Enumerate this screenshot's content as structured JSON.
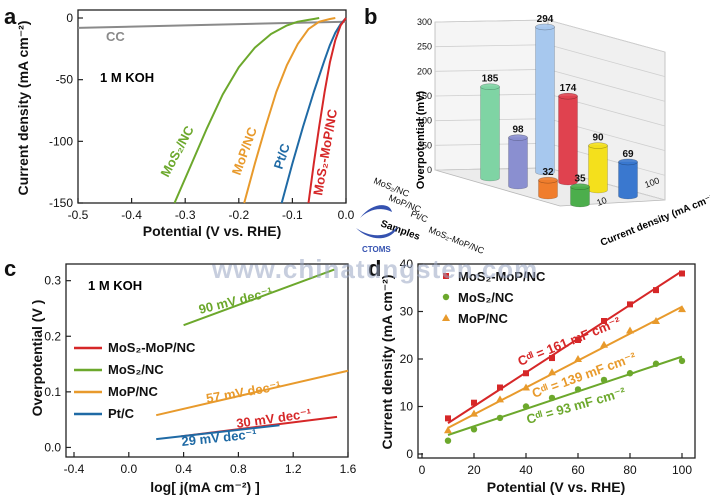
{
  "figure": {
    "watermark_text": "www.chinatungsten.com",
    "logo_text": "CTOMS"
  },
  "colors": {
    "red": "#d62728",
    "green": "#6ca82c",
    "orange": "#e89a2c",
    "blue": "#1f6aa5",
    "grey": "#8a8a8a"
  },
  "chart_data": [
    {
      "panel": "a",
      "type": "line",
      "xlabel": "Potential (V vs. RHE)",
      "ylabel": "Current density (mA cm⁻²)",
      "xlim": [
        -0.5,
        0.0
      ],
      "ylim": [
        -150,
        0
      ],
      "xticks": [
        -0.5,
        -0.4,
        -0.3,
        -0.2,
        -0.1,
        0.0
      ],
      "xtick_labels": [
        "-0.5",
        "-0.4",
        "-0.3",
        "-0.2",
        "-0.1",
        "0.0"
      ],
      "yticks": [
        0,
        -50,
        -100,
        -150
      ],
      "ytick_labels": [
        "0",
        "-50",
        "-100",
        "-150"
      ],
      "annotation": "1 M KOH",
      "series": [
        {
          "name": "CC",
          "label": "CC",
          "color": "#8a8a8a",
          "x": [
            -0.5,
            -0.3,
            -0.1,
            0.0
          ],
          "y": [
            -8,
            -6,
            -4,
            -3
          ]
        },
        {
          "name": "MoS2/NC",
          "label": "MoS₂/NC",
          "color": "#6ca82c",
          "x": [
            -0.32,
            -0.29,
            -0.26,
            -0.23,
            -0.2,
            -0.17,
            -0.14,
            -0.11,
            -0.09,
            -0.07,
            -0.06,
            -0.05
          ],
          "y": [
            -150,
            -120,
            -90,
            -62,
            -40,
            -24,
            -13,
            -6,
            -3,
            -1.5,
            -0.8,
            0
          ]
        },
        {
          "name": "MoP/NC",
          "label": "MoP/NC",
          "color": "#e89a2c",
          "x": [
            -0.19,
            -0.17,
            -0.15,
            -0.13,
            -0.11,
            -0.09,
            -0.07,
            -0.05,
            -0.03,
            -0.02
          ],
          "y": [
            -150,
            -118,
            -88,
            -60,
            -38,
            -21,
            -9,
            -3,
            -0.8,
            0
          ]
        },
        {
          "name": "Pt/C",
          "label": "Pt/C",
          "color": "#1f6aa5",
          "x": [
            -0.12,
            -0.1,
            -0.08,
            -0.06,
            -0.04,
            -0.03,
            -0.02,
            -0.01,
            0.0
          ],
          "y": [
            -150,
            -118,
            -88,
            -60,
            -34,
            -22,
            -12,
            -5,
            0
          ]
        },
        {
          "name": "MoS2-MoP/NC",
          "label": "MoS₂-MoP/NC",
          "color": "#d62728",
          "x": [
            -0.07,
            -0.06,
            -0.05,
            -0.04,
            -0.03,
            -0.02,
            -0.01,
            0.0
          ],
          "y": [
            -150,
            -118,
            -88,
            -60,
            -36,
            -18,
            -6,
            0
          ]
        }
      ]
    },
    {
      "panel": "b",
      "type": "bar",
      "xlabel": "Samples",
      "ylabel": "Overpotential (mV)",
      "zlabel": "Current density (mA cm⁻²)",
      "yticks": [
        0,
        50,
        100,
        150,
        200,
        250,
        300
      ],
      "ytick_labels": [
        "0",
        "50",
        "100",
        "150",
        "200",
        "250",
        "300"
      ],
      "categories": [
        "MoS₂/NC",
        "MoP/NC",
        "Pt/C",
        "MoS₂-MoP/NC"
      ],
      "depth_categories": [
        "10",
        "100"
      ],
      "series": [
        {
          "name": "10",
          "values": [
            185,
            98,
            32,
            35
          ],
          "colors": [
            "#7fd4a4",
            "#8a8fd0",
            "#f07d2c",
            "#4cae4c"
          ]
        },
        {
          "name": "100",
          "values": [
            294,
            174,
            90,
            69
          ],
          "colors": [
            "#a7c8ee",
            "#e0424f",
            "#f4e01c",
            "#3a78cf"
          ]
        }
      ]
    },
    {
      "panel": "c",
      "type": "line",
      "xlabel": "log[ j(mA cm⁻²) ]",
      "ylabel": "Overpotential (V )",
      "xlim": [
        -0.4,
        1.6
      ],
      "ylim": [
        -0.01,
        0.33
      ],
      "xticks": [
        -0.4,
        0.0,
        0.4,
        0.8,
        1.2,
        1.6
      ],
      "xtick_labels": [
        "-0.4",
        "0.0",
        "0.4",
        "0.8",
        "1.2",
        "1.6"
      ],
      "yticks": [
        0.0,
        0.1,
        0.2,
        0.3
      ],
      "ytick_labels": [
        "0.0",
        "0.1",
        "0.2",
        "0.3"
      ],
      "annotation": "1 M KOH",
      "series": [
        {
          "name": "MoS2-MoP/NC",
          "label": "MoS₂-MoP/NC",
          "color": "#d62728",
          "x": [
            0.38,
            1.52
          ],
          "y": [
            0.02,
            0.055
          ],
          "slope_label": "30 mV dec⁻¹"
        },
        {
          "name": "MoS2/NC",
          "label": "MoS₂/NC",
          "color": "#6ca82c",
          "x": [
            0.4,
            1.5
          ],
          "y": [
            0.22,
            0.32
          ],
          "slope_label": "90 mV dec⁻¹"
        },
        {
          "name": "MoP/NC",
          "label": "MoP/NC",
          "color": "#e89a2c",
          "x": [
            0.2,
            1.6
          ],
          "y": [
            0.058,
            0.138
          ],
          "slope_label": "57 mV dec⁻¹"
        },
        {
          "name": "Pt/C",
          "label": "Pt/C",
          "color": "#1f6aa5",
          "x": [
            0.2,
            1.1
          ],
          "y": [
            0.015,
            0.04
          ],
          "slope_label": "29 mV dec⁻¹"
        }
      ]
    },
    {
      "panel": "d",
      "type": "scatter",
      "xlabel": "Potential (V vs. RHE)",
      "ylabel": "Current density (mA cm⁻²)",
      "xlim": [
        0,
        105
      ],
      "ylim": [
        0,
        40
      ],
      "xticks": [
        0,
        20,
        40,
        60,
        80,
        100
      ],
      "xtick_labels": [
        "0",
        "20",
        "40",
        "60",
        "80",
        "100"
      ],
      "yticks": [
        0,
        10,
        20,
        30,
        40
      ],
      "ytick_labels": [
        "0",
        "10",
        "20",
        "30",
        "40"
      ],
      "series": [
        {
          "name": "MoS2-MoP/NC",
          "label": "MoS₂-MoP/NC",
          "color": "#d62728",
          "marker": "square",
          "fit_label": "Cᵈˡ = 161 mF cm⁻²",
          "x": [
            10,
            20,
            30,
            40,
            50,
            60,
            70,
            80,
            90,
            100
          ],
          "y": [
            7.5,
            10.8,
            14.0,
            17.0,
            20.2,
            24.0,
            28.0,
            31.5,
            34.5,
            38.0
          ],
          "fit": [
            [
              10,
              6.5
            ],
            [
              100,
              38.5
            ]
          ]
        },
        {
          "name": "MoS2/NC",
          "label": "MoS₂/NC",
          "color": "#6ca82c",
          "marker": "circle",
          "fit_label": "Cᵈˡ = 93 mF cm⁻²",
          "x": [
            10,
            20,
            30,
            40,
            50,
            60,
            70,
            80,
            90,
            100
          ],
          "y": [
            2.8,
            5.2,
            7.6,
            10.0,
            11.8,
            13.6,
            15.6,
            17.0,
            19.0,
            19.6
          ],
          "fit": [
            [
              10,
              4.0
            ],
            [
              100,
              20.5
            ]
          ]
        },
        {
          "name": "MoP/NC",
          "label": "MoP/NC",
          "color": "#e89a2c",
          "marker": "triangle",
          "fit_label": "Cᵈˡ = 139 mF cm⁻²",
          "x": [
            10,
            20,
            30,
            40,
            50,
            60,
            70,
            80,
            90,
            100
          ],
          "y": [
            5.0,
            8.5,
            11.5,
            14.0,
            17.2,
            20.0,
            23.0,
            26.0,
            28.0,
            30.5
          ],
          "fit": [
            [
              10,
              5.5
            ],
            [
              100,
              31.0
            ]
          ]
        }
      ]
    }
  ]
}
